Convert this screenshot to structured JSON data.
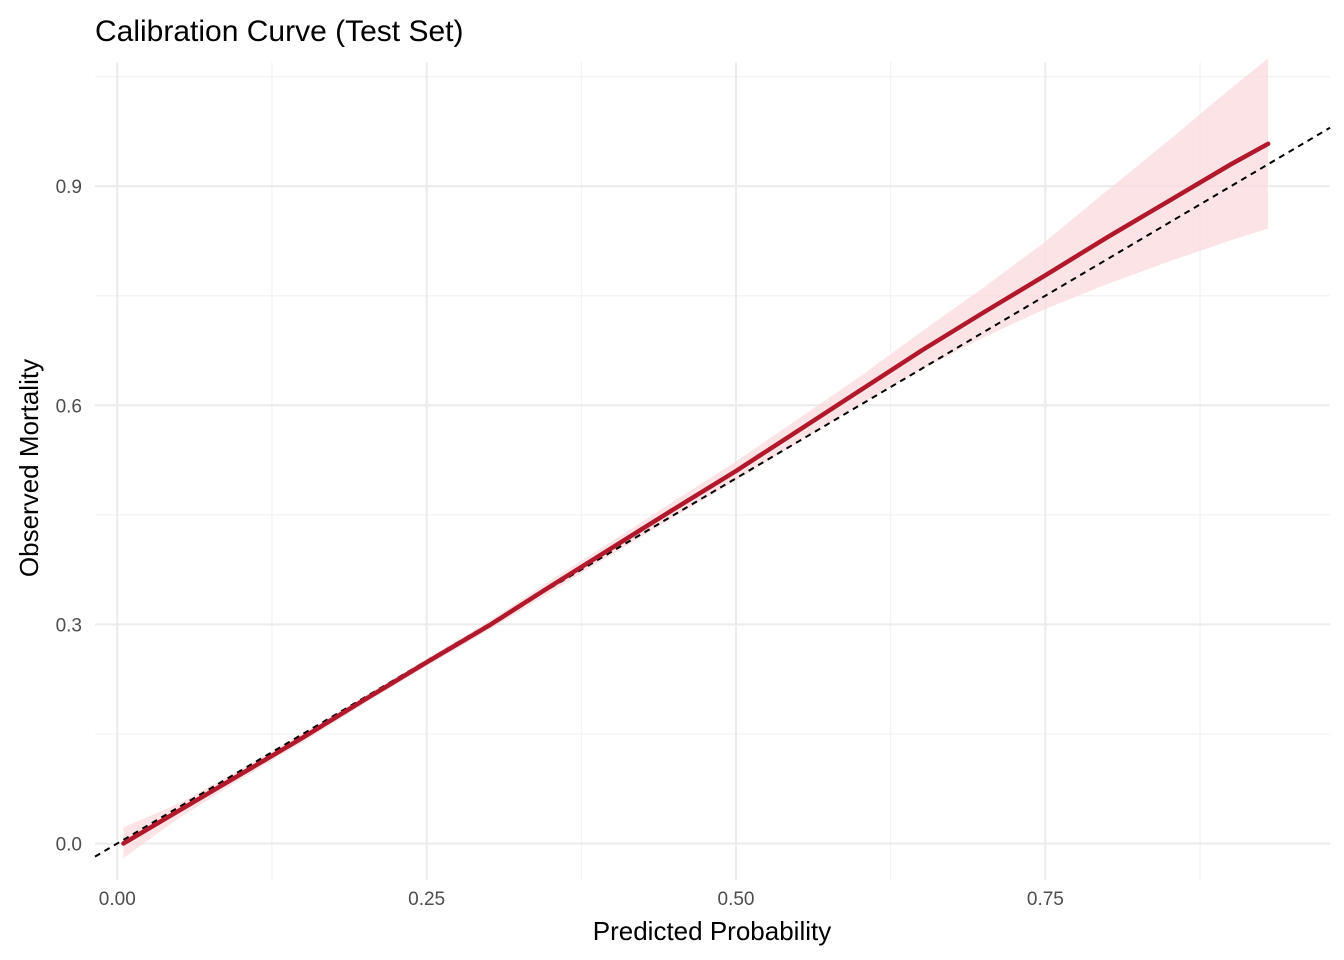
{
  "chart_data": {
    "type": "line",
    "title": "Calibration Curve (Test Set)",
    "xlabel": "Predicted Probability",
    "ylabel": "Observed Mortality",
    "xlim": [
      -0.018,
      0.98
    ],
    "ylim": [
      -0.05,
      1.07
    ],
    "x_ticks": [
      0.0,
      0.25,
      0.5,
      0.75
    ],
    "x_tick_labels": [
      "0.00",
      "0.25",
      "0.50",
      "0.75"
    ],
    "y_ticks": [
      0.0,
      0.3,
      0.6,
      0.9
    ],
    "y_tick_labels": [
      "0.0",
      "0.3",
      "0.6",
      "0.9"
    ],
    "grid": true,
    "legend": "none",
    "series": [
      {
        "kind": "smooth",
        "color": "#B2182B",
        "x": [
          0.005,
          0.05,
          0.1,
          0.15,
          0.2,
          0.25,
          0.3,
          0.35,
          0.4,
          0.45,
          0.5,
          0.55,
          0.6,
          0.65,
          0.7,
          0.75,
          0.8,
          0.85,
          0.9,
          0.93
        ],
        "y": [
          0.0,
          0.045,
          0.095,
          0.145,
          0.197,
          0.248,
          0.298,
          0.352,
          0.405,
          0.458,
          0.51,
          0.565,
          0.62,
          0.675,
          0.727,
          0.778,
          0.83,
          0.88,
          0.93,
          0.958
        ]
      },
      {
        "kind": "confidence-band",
        "color": "#FADADD",
        "x": [
          0.005,
          0.05,
          0.1,
          0.15,
          0.2,
          0.25,
          0.3,
          0.35,
          0.4,
          0.45,
          0.5,
          0.55,
          0.6,
          0.65,
          0.7,
          0.75,
          0.8,
          0.85,
          0.9,
          0.93
        ],
        "lower": [
          -0.02,
          0.035,
          0.088,
          0.139,
          0.192,
          0.243,
          0.292,
          0.344,
          0.396,
          0.447,
          0.497,
          0.549,
          0.601,
          0.649,
          0.693,
          0.732,
          0.766,
          0.797,
          0.826,
          0.842
        ],
        "upper": [
          0.022,
          0.055,
          0.102,
          0.151,
          0.202,
          0.253,
          0.304,
          0.36,
          0.414,
          0.469,
          0.523,
          0.581,
          0.639,
          0.701,
          0.761,
          0.824,
          0.894,
          0.963,
          1.034,
          1.075
        ]
      },
      {
        "kind": "reference",
        "style": "dashed",
        "color": "#000000",
        "x": [
          -0.018,
          0.98
        ],
        "y": [
          -0.018,
          0.98
        ]
      }
    ]
  }
}
